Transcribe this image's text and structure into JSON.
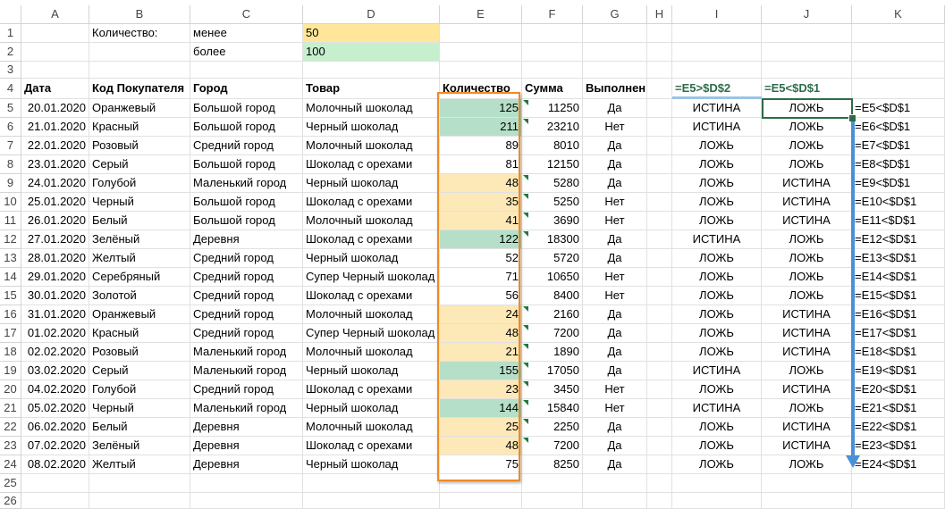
{
  "columns": [
    "A",
    "B",
    "C",
    "D",
    "E",
    "F",
    "G",
    "H",
    "I",
    "J",
    "K"
  ],
  "row_numbers": [
    1,
    2,
    3,
    4,
    5,
    6,
    7,
    8,
    9,
    10,
    11,
    12,
    13,
    14,
    15,
    16,
    17,
    18,
    19,
    20,
    21,
    22,
    23,
    24,
    25,
    26
  ],
  "top": {
    "b1": "Количество:",
    "c1": "менее",
    "d1": "50",
    "c2": "более",
    "d2": "100"
  },
  "headers": {
    "a": "Дата",
    "b": "Код Покупателя",
    "c": "Город",
    "d": "Товар",
    "e": "Количество",
    "f": "Сумма",
    "g": "Выполнен",
    "i": "=E5>$D$2",
    "j": "=E5<$D$1"
  },
  "colors": {
    "low_fill": "#fde8b7",
    "high_fill": "#b5dfc9",
    "d1_fill": "#ffe699",
    "d2_fill": "#c6efce",
    "highlight_border": "#f08a24",
    "arrow": "#4a90d9"
  },
  "rows": [
    [
      "20.01.2020",
      "Оранжевый",
      "Большой город",
      "Молочный шоколад",
      "125",
      "11250",
      "Да",
      "ИСТИНА",
      "ЛОЖЬ",
      "=E5<$D$1"
    ],
    [
      "21.01.2020",
      "Красный",
      "Большой город",
      "Черный шоколад",
      "211",
      "23210",
      "Нет",
      "ИСТИНА",
      "ЛОЖЬ",
      "=E6<$D$1"
    ],
    [
      "22.01.2020",
      "Розовый",
      "Средний город",
      "Молочный шоколад",
      "89",
      "8010",
      "Да",
      "ЛОЖЬ",
      "ЛОЖЬ",
      "=E7<$D$1"
    ],
    [
      "23.01.2020",
      "Серый",
      "Большой город",
      "Шоколад с орехами",
      "81",
      "12150",
      "Да",
      "ЛОЖЬ",
      "ЛОЖЬ",
      "=E8<$D$1"
    ],
    [
      "24.01.2020",
      "Голубой",
      "Маленький город",
      "Черный шоколад",
      "48",
      "5280",
      "Да",
      "ЛОЖЬ",
      "ИСТИНА",
      "=E9<$D$1"
    ],
    [
      "25.01.2020",
      "Черный",
      "Большой город",
      "Шоколад с орехами",
      "35",
      "5250",
      "Нет",
      "ЛОЖЬ",
      "ИСТИНА",
      "=E10<$D$1"
    ],
    [
      "26.01.2020",
      "Белый",
      "Большой город",
      "Молочный шоколад",
      "41",
      "3690",
      "Нет",
      "ЛОЖЬ",
      "ИСТИНА",
      "=E11<$D$1"
    ],
    [
      "27.01.2020",
      "Зелёный",
      "Деревня",
      "Шоколад с орехами",
      "122",
      "18300",
      "Да",
      "ИСТИНА",
      "ЛОЖЬ",
      "=E12<$D$1"
    ],
    [
      "28.01.2020",
      "Желтый",
      "Средний город",
      "Черный шоколад",
      "52",
      "5720",
      "Да",
      "ЛОЖЬ",
      "ЛОЖЬ",
      "=E13<$D$1"
    ],
    [
      "29.01.2020",
      "Серебряный",
      "Средний город",
      "Супер Черный шоколад",
      "71",
      "10650",
      "Нет",
      "ЛОЖЬ",
      "ЛОЖЬ",
      "=E14<$D$1"
    ],
    [
      "30.01.2020",
      "Золотой",
      "Средний город",
      "Шоколад с орехами",
      "56",
      "8400",
      "Нет",
      "ЛОЖЬ",
      "ЛОЖЬ",
      "=E15<$D$1"
    ],
    [
      "31.01.2020",
      "Оранжевый",
      "Средний город",
      "Молочный шоколад",
      "24",
      "2160",
      "Да",
      "ЛОЖЬ",
      "ИСТИНА",
      "=E16<$D$1"
    ],
    [
      "01.02.2020",
      "Красный",
      "Средний город",
      "Супер Черный шоколад",
      "48",
      "7200",
      "Да",
      "ЛОЖЬ",
      "ИСТИНА",
      "=E17<$D$1"
    ],
    [
      "02.02.2020",
      "Розовый",
      "Маленький город",
      "Молочный шоколад",
      "21",
      "1890",
      "Да",
      "ЛОЖЬ",
      "ИСТИНА",
      "=E18<$D$1"
    ],
    [
      "03.02.2020",
      "Серый",
      "Маленький город",
      "Черный шоколад",
      "155",
      "17050",
      "Да",
      "ИСТИНА",
      "ЛОЖЬ",
      "=E19<$D$1"
    ],
    [
      "04.02.2020",
      "Голубой",
      "Средний город",
      "Шоколад с орехами",
      "23",
      "3450",
      "Нет",
      "ЛОЖЬ",
      "ИСТИНА",
      "=E20<$D$1"
    ],
    [
      "05.02.2020",
      "Черный",
      "Маленький город",
      "Черный шоколад",
      "144",
      "15840",
      "Нет",
      "ИСТИНА",
      "ЛОЖЬ",
      "=E21<$D$1"
    ],
    [
      "06.02.2020",
      "Белый",
      "Деревня",
      "Молочный шоколад",
      "25",
      "2250",
      "Да",
      "ЛОЖЬ",
      "ИСТИНА",
      "=E22<$D$1"
    ],
    [
      "07.02.2020",
      "Зелёный",
      "Деревня",
      "Шоколад с орехами",
      "48",
      "7200",
      "Да",
      "ЛОЖЬ",
      "ИСТИНА",
      "=E23<$D$1"
    ],
    [
      "08.02.2020",
      "Желтый",
      "Деревня",
      "Черный шоколад",
      "75",
      "8250",
      "Да",
      "ЛОЖЬ",
      "ЛОЖЬ",
      "=E24<$D$1"
    ]
  ]
}
